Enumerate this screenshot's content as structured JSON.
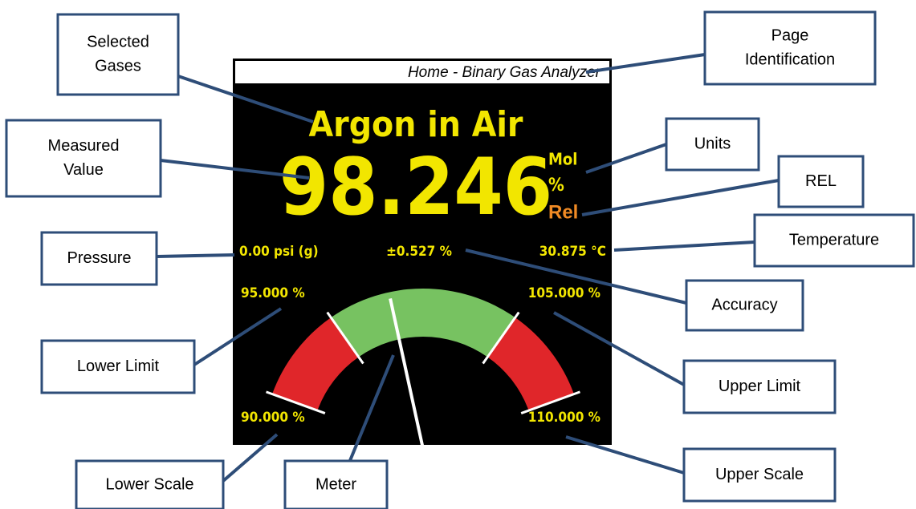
{
  "screen": {
    "page_title": "Home - Binary Gas Analyzer",
    "gases": "Argon in Air",
    "value": "98.246",
    "units": [
      "Mol",
      "%"
    ],
    "rel": "Rel",
    "pressure": "0.00 psi (g)",
    "accuracy": "±0.527 %",
    "temperature": "30.875 °C",
    "lower_limit": "95.000 %",
    "upper_limit": "105.000 %",
    "lower_scale": "90.000 %",
    "upper_scale": "110.000 %"
  },
  "callouts": [
    {
      "lines": [
        "Selected",
        "Gases"
      ]
    },
    {
      "lines": [
        "Page",
        "Identification"
      ]
    },
    {
      "lines": [
        "Measured",
        "Value"
      ]
    },
    {
      "lines": [
        "Units"
      ]
    },
    {
      "lines": [
        "REL"
      ]
    },
    {
      "lines": [
        "Pressure"
      ]
    },
    {
      "lines": [
        "Temperature"
      ]
    },
    {
      "lines": [
        "Accuracy"
      ]
    },
    {
      "lines": [
        "Lower Limit"
      ]
    },
    {
      "lines": [
        "Upper Limit"
      ]
    },
    {
      "lines": [
        "Lower Scale"
      ]
    },
    {
      "lines": [
        "Meter"
      ]
    },
    {
      "lines": [
        "Upper Scale"
      ]
    }
  ]
}
